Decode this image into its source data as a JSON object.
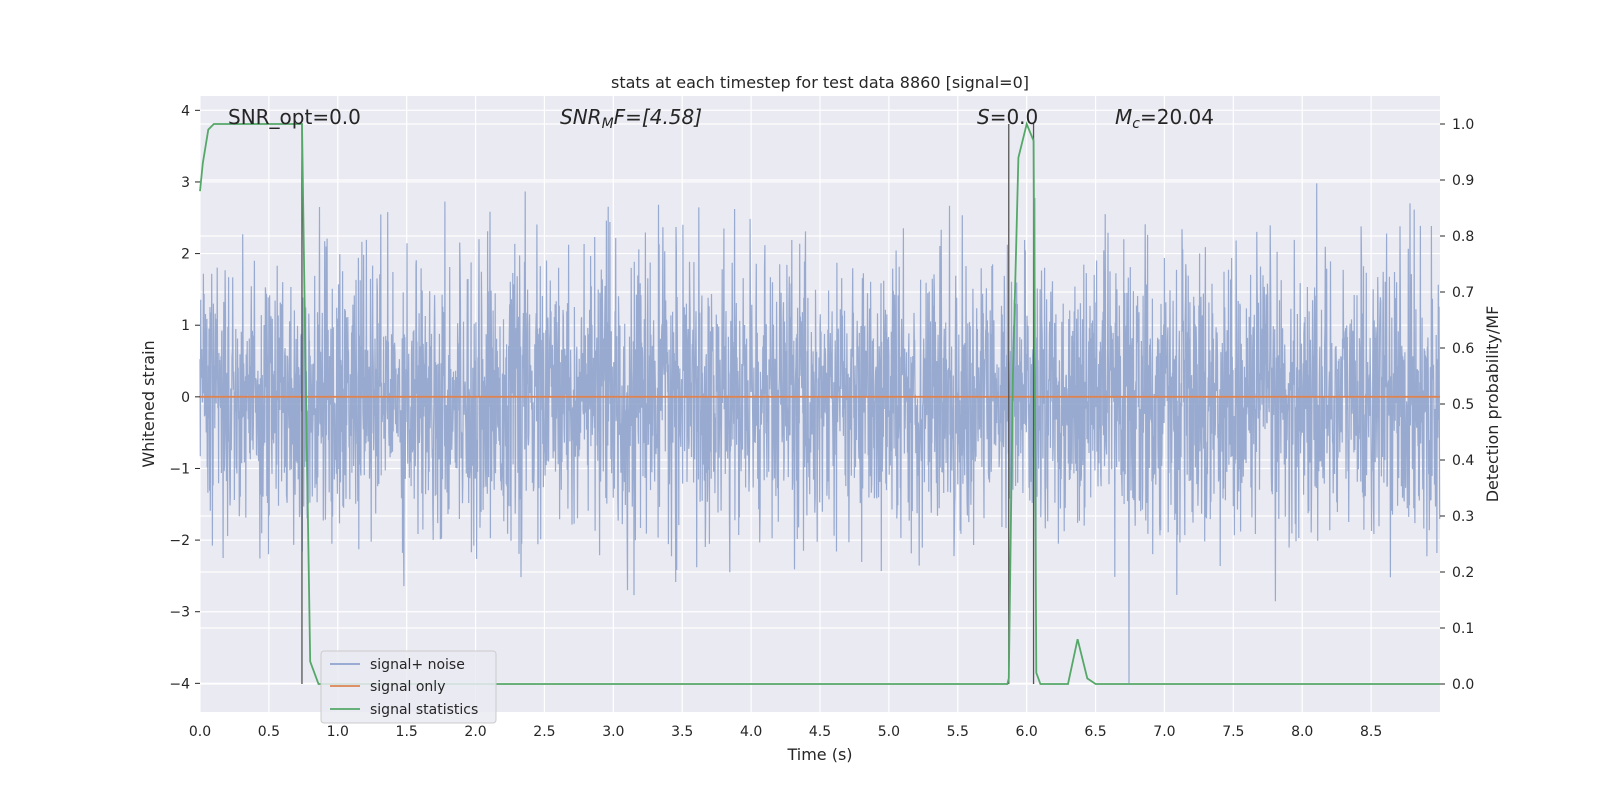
{
  "chart_data": {
    "type": "line",
    "title": "stats at each timestep for test data 8860 [signal=0]",
    "xlabel": "Time (s)",
    "ylabel": "Whitened strain",
    "y2label": "Detection probability/MF",
    "xlim": [
      0.0,
      9.0
    ],
    "ylim": [
      -4.4,
      4.2
    ],
    "y2lim": [
      -0.05,
      1.05
    ],
    "xticks": [
      "0.0",
      "0.5",
      "1.0",
      "1.5",
      "2.0",
      "2.5",
      "3.0",
      "3.5",
      "4.0",
      "4.5",
      "5.0",
      "5.5",
      "6.0",
      "6.5",
      "7.0",
      "7.5",
      "8.0",
      "8.5"
    ],
    "yticks": [
      "4",
      "3",
      "2",
      "1",
      "0",
      "−1",
      "−2",
      "−3",
      "−4"
    ],
    "y2ticks": [
      "1.0",
      "0.9",
      "0.8",
      "0.7",
      "0.6",
      "0.5",
      "0.4",
      "0.3",
      "0.2",
      "0.1",
      "0.0"
    ],
    "grid": true,
    "legend_position": "lower-left",
    "annotations": {
      "snr_opt": "SNR_opt=0.0",
      "snr_mf_main": "SNR",
      "snr_mf_sub": "M",
      "snr_mf_rest": "F=[4.58]",
      "s_main": "S",
      "s_rest": "=0.0",
      "mc_main": "M",
      "mc_sub": "c",
      "mc_rest": "=20.04"
    },
    "vertical_lines_x": [
      0.74,
      5.87,
      6.05
    ],
    "series": [
      {
        "name": "signal+ noise",
        "color": "#8fa3cc",
        "description_values": "gaussian noise, amplitude about ±1.5 with spikes to about ±3.8",
        "noise_seed": 8860,
        "noise_sigma": 0.95,
        "sample_rate": 400
      },
      {
        "name": "signal only",
        "color": "#dd8452",
        "x": [
          0.0,
          9.0
        ],
        "y": [
          0.0,
          0.0
        ]
      },
      {
        "name": "signal statistics",
        "color": "#55a868",
        "axis": "right",
        "x": [
          0.0,
          0.02,
          0.06,
          0.1,
          0.2,
          0.5,
          0.72,
          0.74,
          0.77,
          0.8,
          0.86,
          0.9,
          1.0,
          2.0,
          3.0,
          4.0,
          4.2,
          5.0,
          5.86,
          5.87,
          5.9,
          5.94,
          6.0,
          6.05,
          6.07,
          6.1,
          6.2,
          6.3,
          6.37,
          6.44,
          6.5,
          7.0,
          8.0,
          8.7,
          8.8,
          9.0
        ],
        "y": [
          0.88,
          0.93,
          0.99,
          1.0,
          1.0,
          1.0,
          1.0,
          1.0,
          0.5,
          0.04,
          0.0,
          0.0,
          0.0,
          0.0,
          0.0,
          0.0,
          0.0,
          0.0,
          0.0,
          0.01,
          0.55,
          0.94,
          1.0,
          0.97,
          0.02,
          0.0,
          0.0,
          0.0,
          0.08,
          0.01,
          0.0,
          0.0,
          0.0,
          0.0,
          0.0,
          0.0
        ]
      }
    ]
  },
  "legend": {
    "items": [
      {
        "label": "signal+ noise",
        "color": "#8fa3cc"
      },
      {
        "label": "signal only",
        "color": "#dd8452"
      },
      {
        "label": "signal statistics",
        "color": "#55a868"
      }
    ]
  }
}
